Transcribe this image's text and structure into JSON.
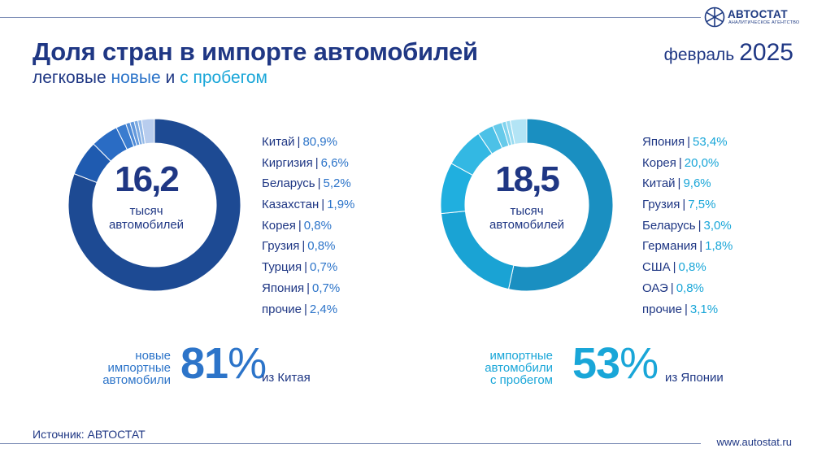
{
  "header": {
    "title": "Доля стран в импорте автомобилей",
    "subtitle": {
      "part1": "легковые",
      "part2": "новые",
      "part3": "и",
      "part4": "с пробегом"
    },
    "date_month": "февраль",
    "date_year": "2025"
  },
  "logo": {
    "name": "АВТОСТАТ",
    "subtitle": "АНАЛИТИЧЕСКОЕ АГЕНТСТВО"
  },
  "colors": {
    "dark_blue": "#1f3784",
    "new_accent": "#2c74c9",
    "used_accent": "#19a6d8"
  },
  "chart_data": [
    {
      "type": "pie",
      "variant": "donut",
      "center_value": "16,2",
      "center_label": [
        "тысяч",
        "автомобилей"
      ],
      "series": [
        {
          "name": "Китай",
          "label": "80,9%",
          "value": 80.9,
          "color": "#1d4a93"
        },
        {
          "name": "Киргизия",
          "label": "6,6%",
          "value": 6.6,
          "color": "#1f5bb0"
        },
        {
          "name": "Беларусь",
          "label": "5,2%",
          "value": 5.2,
          "color": "#2a6cc4"
        },
        {
          "name": "Казахстан",
          "label": "1,9%",
          "value": 1.9,
          "color": "#3a7ccf"
        },
        {
          "name": "Корея",
          "label": "0,8%",
          "value": 0.8,
          "color": "#4d8ad6"
        },
        {
          "name": "Грузия",
          "label": "0,8%",
          "value": 0.8,
          "color": "#6399dc"
        },
        {
          "name": "Турция",
          "label": "0,7%",
          "value": 0.7,
          "color": "#7aa9e1"
        },
        {
          "name": "Япония",
          "label": "0,7%",
          "value": 0.7,
          "color": "#93b9e7"
        },
        {
          "name": "прочие",
          "label": "2,4%",
          "value": 2.4,
          "color": "#b8cdee"
        }
      ]
    },
    {
      "type": "pie",
      "variant": "donut",
      "center_value": "18,5",
      "center_label": [
        "тысяч",
        "автомобилей"
      ],
      "series": [
        {
          "name": "Япония",
          "label": "53,4%",
          "value": 53.4,
          "color": "#1a8fc1"
        },
        {
          "name": "Корея",
          "label": "20,0%",
          "value": 20.0,
          "color": "#1aa3d4"
        },
        {
          "name": "Китай",
          "label": "9,6%",
          "value": 9.6,
          "color": "#20afdf"
        },
        {
          "name": "Грузия",
          "label": "7,5%",
          "value": 7.5,
          "color": "#33b8e3"
        },
        {
          "name": "Беларусь",
          "label": "3,0%",
          "value": 3.0,
          "color": "#4cc1e7"
        },
        {
          "name": "Германия",
          "label": "1,8%",
          "value": 1.8,
          "color": "#66caea"
        },
        {
          "name": "США",
          "label": "0,8%",
          "value": 0.8,
          "color": "#80d3ee"
        },
        {
          "name": "ОАЭ",
          "label": "0,8%",
          "value": 0.8,
          "color": "#98dbf1"
        },
        {
          "name": "прочие",
          "label": "3,1%",
          "value": 3.1,
          "color": "#b3e4f5"
        }
      ]
    }
  ],
  "stats": {
    "new": {
      "desc": [
        "новые",
        "импортные",
        "автомобили"
      ],
      "value": "81",
      "sign": "%",
      "from": "из Китая"
    },
    "used": {
      "desc": [
        "импортные",
        "автомобили",
        "с пробегом"
      ],
      "value": "53",
      "sign": "%",
      "from": "из Японии"
    }
  },
  "footer": {
    "source": "Источник: АВТОСТАТ",
    "site": "www.autostat.ru"
  }
}
